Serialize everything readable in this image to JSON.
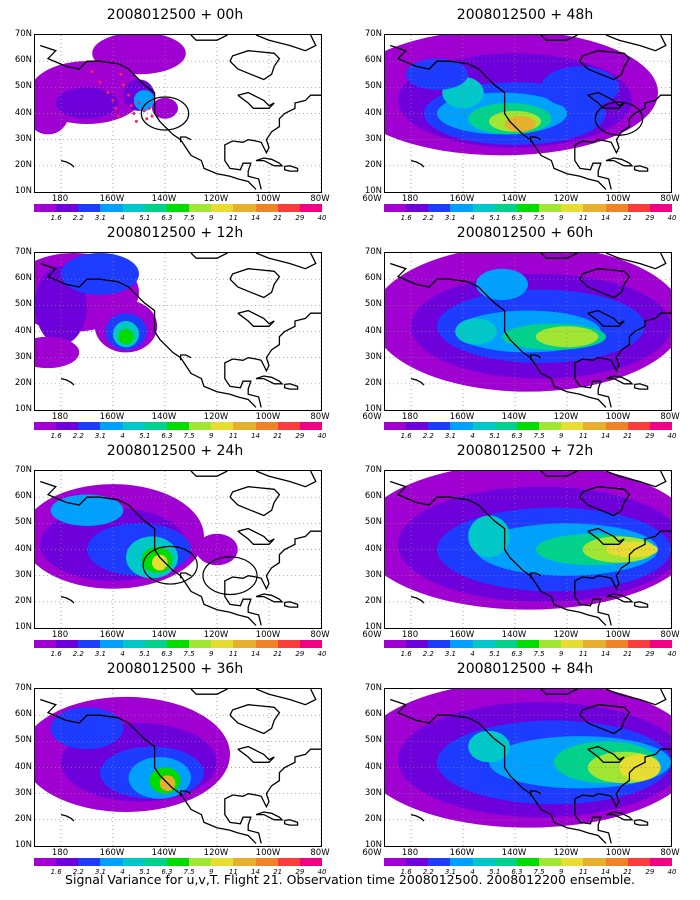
{
  "panels": [
    {
      "title": "2008012500 + 00h"
    },
    {
      "title": "2008012500 + 48h"
    },
    {
      "title": "2008012500 + 12h"
    },
    {
      "title": "2008012500 + 60h"
    },
    {
      "title": "2008012500 + 24h"
    },
    {
      "title": "2008012500 + 72h"
    },
    {
      "title": "2008012500 + 36h"
    },
    {
      "title": "2008012500 + 84h"
    }
  ],
  "lat_labels": [
    "70N",
    "60N",
    "50N",
    "40N",
    "30N",
    "20N",
    "10N"
  ],
  "lon_labels": [
    "180",
    "160W",
    "140W",
    "120W",
    "100W",
    "80W",
    "60W"
  ],
  "colorbar": {
    "levels": [
      "1.6",
      "2.2",
      "3.1",
      "4",
      "5.1",
      "6.3",
      "7.5",
      "9",
      "11",
      "14",
      "21",
      "29",
      "40"
    ],
    "colors": [
      "#a000d2",
      "#6e00dc",
      "#1e3cff",
      "#00a0ff",
      "#00c8c8",
      "#00d28c",
      "#00dc00",
      "#a0e632",
      "#e6dc32",
      "#e6af2d",
      "#f08228",
      "#fa3c3c",
      "#f00082"
    ]
  },
  "caption": "Signal Variance for u,v,T. Flight 21. Observation time 2008012500. 2008012200 ensemble."
}
